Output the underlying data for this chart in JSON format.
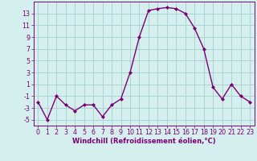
{
  "hours": [
    0,
    1,
    2,
    3,
    4,
    5,
    6,
    7,
    8,
    9,
    10,
    11,
    12,
    13,
    14,
    15,
    16,
    17,
    18,
    19,
    20,
    21,
    22,
    23
  ],
  "values": [
    -2,
    -5,
    -1,
    -2.5,
    -3.5,
    -2.5,
    -2.5,
    -4.5,
    -2.5,
    -1.5,
    3,
    9,
    13.5,
    13.8,
    14,
    13.8,
    13,
    10.5,
    7,
    0.5,
    -1.5,
    1,
    -1,
    -2
  ],
  "line_color": "#7b0076",
  "marker": "D",
  "marker_size": 2.0,
  "bg_color": "#d5eeee",
  "grid_color": "#aad4d4",
  "xlabel": "Windchill (Refroidissement éolien,°C)",
  "xlabel_fontsize": 6.0,
  "yticks": [
    -5,
    -3,
    -1,
    1,
    3,
    5,
    7,
    9,
    11,
    13
  ],
  "xticks": [
    0,
    1,
    2,
    3,
    4,
    5,
    6,
    7,
    8,
    9,
    10,
    11,
    12,
    13,
    14,
    15,
    16,
    17,
    18,
    19,
    20,
    21,
    22,
    23
  ],
  "ylim": [
    -6,
    15
  ],
  "xlim": [
    -0.5,
    23.5
  ],
  "tick_fontsize": 5.8,
  "line_width": 1.0
}
